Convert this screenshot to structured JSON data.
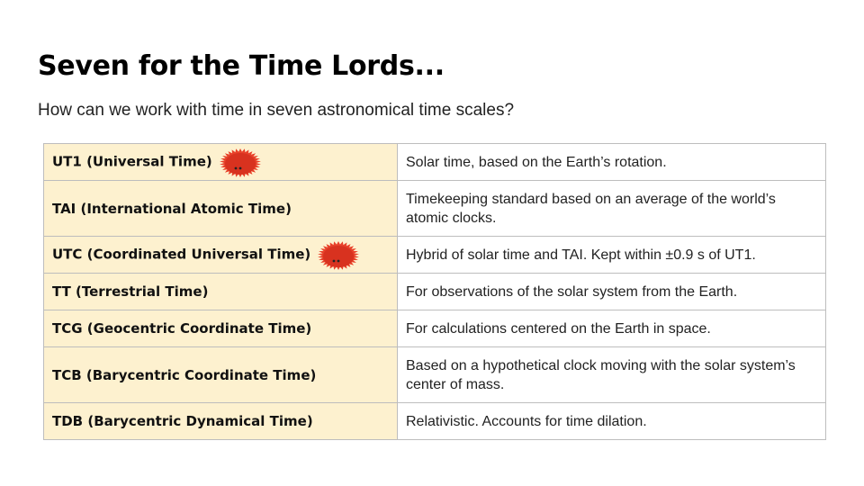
{
  "title": "Seven for the Time Lords...",
  "subtitle": "How can we work with time in seven astronomical time scales?",
  "mascot_color": "#e8412a",
  "accent_background": "#fdf1cf",
  "rows": [
    {
      "scale": "UT1 (Universal Time)",
      "description": "Solar time, based on the Earth’s rotation.",
      "mascot": true
    },
    {
      "scale": "TAI (International Atomic Time)",
      "description": "Timekeeping standard based on an average of the world’s atomic clocks.",
      "mascot": false
    },
    {
      "scale": "UTC (Coordinated Universal Time)",
      "description": "Hybrid of solar time and TAI. Kept within ±0.9 s of UT1.",
      "mascot": true
    },
    {
      "scale": "TT (Terrestrial Time)",
      "description": "For observations of the solar system from the Earth.",
      "mascot": false
    },
    {
      "scale": "TCG (Geocentric Coordinate Time)",
      "description": "For calculations centered on the Earth in space.",
      "mascot": false
    },
    {
      "scale": "TCB (Barycentric Coordinate Time)",
      "description": "Based on a hypothetical clock moving with the solar system’s center of mass.",
      "mascot": false
    },
    {
      "scale": "TDB (Barycentric Dynamical Time)",
      "description": "Relativistic. Accounts for time dilation.",
      "mascot": false
    }
  ]
}
